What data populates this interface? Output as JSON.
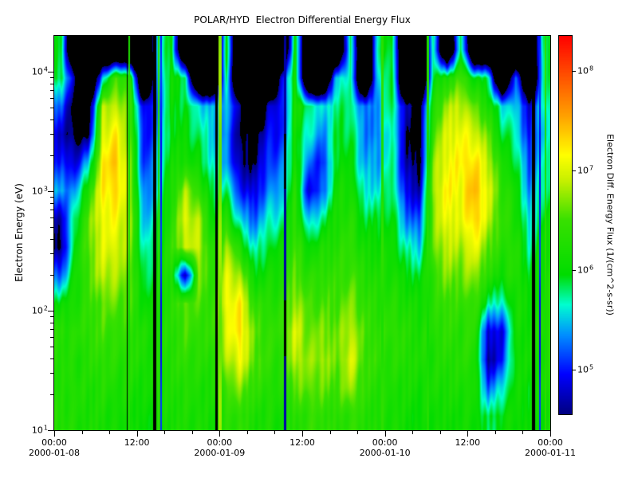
{
  "chart_data": {
    "type": "heatmap",
    "title": "POLAR/HYD  Electron Differential Energy Flux",
    "x_axis": {
      "start": "2000-01-08 00:00",
      "end": "2000-01-11 00:00",
      "total_hours": 72,
      "major_ticks": [
        {
          "hour": 0,
          "label": "00:00",
          "date": "2000-01-08"
        },
        {
          "hour": 12,
          "label": "12:00"
        },
        {
          "hour": 24,
          "label": "00:00",
          "date": "2000-01-09"
        },
        {
          "hour": 36,
          "label": "12:00"
        },
        {
          "hour": 48,
          "label": "00:00",
          "date": "2000-01-10"
        },
        {
          "hour": 60,
          "label": "12:00"
        },
        {
          "hour": 72,
          "label": "00:00",
          "date": "2000-01-11"
        }
      ],
      "minor_tick_step_hours": 4
    },
    "y_axis": {
      "label": "Electron Energy (eV)",
      "scale": "log",
      "range_ev": [
        10,
        20000
      ],
      "log_range": [
        1.0,
        4.3
      ],
      "major_ticks": [
        {
          "log": 4,
          "base": "10",
          "exp": "4"
        },
        {
          "log": 3,
          "base": "10",
          "exp": "3"
        },
        {
          "log": 2,
          "base": "10",
          "exp": "2"
        },
        {
          "log": 1,
          "base": "10",
          "exp": "1"
        }
      ]
    },
    "colorbar": {
      "label": "Electron Diff. Energy Flux (1/(cm^2-s-sr))",
      "scale": "log",
      "log_range": [
        4.55,
        8.35
      ],
      "ticks": [
        {
          "log": 8,
          "base": "10",
          "exp": "8"
        },
        {
          "log": 7,
          "base": "10",
          "exp": "7"
        },
        {
          "log": 6,
          "base": "10",
          "exp": "6"
        },
        {
          "log": 5,
          "base": "10",
          "exp": "5"
        }
      ],
      "colormap_stops": [
        {
          "v": 4.55,
          "color": "#000080"
        },
        {
          "v": 4.95,
          "color": "#0000ff"
        },
        {
          "v": 5.35,
          "color": "#0090ff"
        },
        {
          "v": 5.65,
          "color": "#00ffd0"
        },
        {
          "v": 5.95,
          "color": "#00dc00"
        },
        {
          "v": 6.5,
          "color": "#38e000"
        },
        {
          "v": 6.9,
          "color": "#c8f000"
        },
        {
          "v": 7.15,
          "color": "#ffff00"
        },
        {
          "v": 7.55,
          "color": "#ffa000"
        },
        {
          "v": 7.95,
          "color": "#ff5000"
        },
        {
          "v": 8.35,
          "color": "#ff0000"
        }
      ],
      "below_scale_color": "#000000"
    },
    "grid": {
      "note": "log10 electron differential energy flux; 36 two-hour time columns from 2000-01-08 00:00; each column lists values for energy_levels_ev top(high E) to bottom(low E); null = below color scale (rendered black)",
      "time_bin_hours": 2,
      "energy_levels_ev": [
        15000,
        9000,
        5100,
        3000,
        1750,
        1000,
        590,
        340,
        200,
        115,
        67,
        39,
        22,
        13
      ],
      "columns": [
        [
          5.9,
          5.9,
          5.2,
          4.8,
          5.0,
          5.4,
          4.7,
          4.5,
          5.2,
          6.0,
          6.3,
          6.3,
          6.2,
          6.3
        ],
        [
          null,
          4.6,
          4.3,
          4.4,
          4.8,
          5.3,
          5.8,
          6.0,
          6.1,
          6.2,
          6.3,
          6.2,
          6.3,
          6.2
        ],
        [
          null,
          null,
          4.2,
          4.5,
          5.5,
          6.3,
          6.6,
          6.6,
          6.5,
          6.4,
          6.4,
          6.3,
          6.2,
          6.2
        ],
        [
          null,
          5.5,
          6.8,
          7.0,
          7.2,
          7.2,
          7.1,
          7.0,
          6.9,
          6.6,
          6.5,
          6.4,
          6.3,
          6.2
        ],
        [
          null,
          6.5,
          6.9,
          7.2,
          7.4,
          7.3,
          7.1,
          7.0,
          6.8,
          6.6,
          6.4,
          6.3,
          6.2,
          6.1
        ],
        [
          null,
          6.3,
          6.5,
          6.6,
          6.7,
          6.8,
          6.8,
          6.7,
          6.6,
          6.5,
          6.4,
          6.3,
          6.2,
          6.1
        ],
        [
          null,
          null,
          4.8,
          4.9,
          5.0,
          5.2,
          5.4,
          5.6,
          5.8,
          6.0,
          6.2,
          6.2,
          6.1,
          6.0
        ],
        [
          5.5,
          5.3,
          5.2,
          5.3,
          5.5,
          5.6,
          5.8,
          5.9,
          6.0,
          6.1,
          6.2,
          6.2,
          6.2,
          6.1
        ],
        [
          6.0,
          6.1,
          6.0,
          6.0,
          6.1,
          6.2,
          6.3,
          6.4,
          6.3,
          6.3,
          6.3,
          6.3,
          6.2,
          6.2
        ],
        [
          null,
          5.8,
          5.9,
          6.0,
          6.2,
          6.8,
          7.0,
          6.9,
          4.6,
          6.6,
          6.5,
          6.4,
          6.3,
          6.2
        ],
        [
          null,
          null,
          5.6,
          5.8,
          6.0,
          6.4,
          6.8,
          6.9,
          6.7,
          6.5,
          6.4,
          6.3,
          6.2,
          6.2
        ],
        [
          null,
          null,
          5.4,
          5.5,
          5.6,
          5.8,
          6.0,
          6.2,
          6.3,
          6.4,
          6.4,
          6.3,
          6.2,
          6.1
        ],
        [
          6.0,
          5.8,
          5.5,
          5.3,
          5.4,
          5.8,
          6.3,
          6.8,
          7.0,
          7.1,
          7.0,
          6.8,
          6.5,
          6.3
        ],
        [
          null,
          null,
          4.6,
          4.5,
          4.6,
          5.0,
          5.5,
          6.2,
          6.8,
          7.2,
          7.3,
          7.1,
          6.7,
          6.4
        ],
        [
          null,
          null,
          null,
          4.4,
          4.5,
          4.8,
          5.2,
          5.6,
          6.0,
          6.4,
          6.6,
          6.6,
          6.4,
          6.2
        ],
        [
          null,
          null,
          4.8,
          4.9,
          5.1,
          5.3,
          5.6,
          5.9,
          6.1,
          6.3,
          6.4,
          6.4,
          6.3,
          6.2
        ],
        [
          null,
          4.8,
          4.9,
          5.0,
          5.2,
          5.4,
          5.7,
          6.0,
          6.2,
          6.3,
          6.4,
          6.3,
          6.2,
          6.1
        ],
        [
          6.1,
          6.2,
          6.2,
          6.1,
          6.2,
          6.3,
          6.4,
          6.5,
          6.6,
          6.8,
          7.0,
          6.9,
          6.6,
          6.3
        ],
        [
          null,
          null,
          5.8,
          5.6,
          5.2,
          4.8,
          5.4,
          6.0,
          6.3,
          6.5,
          6.6,
          6.7,
          6.6,
          6.4
        ],
        [
          null,
          null,
          5.5,
          5.3,
          5.0,
          5.2,
          5.8,
          6.2,
          6.4,
          6.5,
          6.7,
          6.8,
          6.6,
          6.4
        ],
        [
          null,
          5.6,
          5.8,
          5.9,
          6.0,
          6.1,
          6.2,
          6.3,
          6.4,
          6.5,
          6.6,
          6.6,
          6.5,
          6.3
        ],
        [
          5.9,
          5.7,
          5.8,
          5.9,
          6.0,
          6.2,
          6.3,
          6.4,
          6.5,
          6.7,
          6.9,
          7.0,
          6.8,
          6.4
        ],
        [
          null,
          null,
          5.2,
          5.3,
          5.4,
          5.6,
          5.9,
          6.1,
          6.3,
          6.4,
          6.5,
          6.5,
          6.4,
          6.3
        ],
        [
          5.8,
          5.6,
          5.4,
          5.3,
          5.4,
          5.6,
          5.9,
          6.1,
          6.2,
          6.3,
          6.4,
          6.4,
          6.3,
          6.2
        ],
        [
          6.0,
          6.0,
          5.9,
          5.8,
          5.8,
          5.9,
          6.0,
          6.1,
          6.2,
          6.3,
          6.4,
          6.3,
          6.2,
          6.2
        ],
        [
          null,
          null,
          4.7,
          4.6,
          4.7,
          4.9,
          5.3,
          5.7,
          6.0,
          6.2,
          6.3,
          6.3,
          6.2,
          6.1
        ],
        [
          null,
          null,
          4.4,
          4.3,
          4.4,
          4.7,
          5.1,
          5.5,
          5.9,
          6.1,
          6.2,
          6.2,
          6.1,
          6.0
        ],
        [
          5.8,
          5.9,
          6.2,
          6.5,
          6.7,
          6.8,
          6.7,
          6.6,
          6.4,
          6.3,
          6.3,
          6.2,
          6.2,
          6.1
        ],
        [
          null,
          6.2,
          6.8,
          7.0,
          7.1,
          7.2,
          7.1,
          6.9,
          6.7,
          6.5,
          6.4,
          6.3,
          6.2,
          6.1
        ],
        [
          6.0,
          6.5,
          6.9,
          7.1,
          7.2,
          7.1,
          7.0,
          6.8,
          6.6,
          6.4,
          6.3,
          6.3,
          6.2,
          6.1
        ],
        [
          null,
          6.0,
          6.6,
          7.0,
          7.3,
          7.5,
          7.4,
          7.1,
          6.8,
          6.5,
          6.4,
          6.3,
          6.2,
          6.1
        ],
        [
          null,
          5.8,
          6.2,
          6.6,
          6.9,
          7.0,
          6.9,
          6.6,
          6.3,
          5.8,
          4.8,
          4.6,
          5.2,
          5.8
        ],
        [
          null,
          null,
          5.6,
          5.9,
          6.2,
          6.4,
          6.4,
          6.3,
          6.1,
          5.6,
          4.9,
          5.0,
          5.6,
          6.0
        ],
        [
          null,
          5.4,
          5.5,
          5.7,
          5.9,
          6.1,
          6.2,
          6.3,
          6.3,
          6.2,
          6.1,
          6.1,
          6.1,
          6.1
        ],
        [
          null,
          null,
          4.8,
          4.9,
          5.1,
          5.3,
          5.5,
          5.7,
          5.9,
          6.0,
          6.1,
          6.1,
          6.0,
          6.0
        ],
        [
          5.9,
          5.8,
          5.7,
          5.6,
          5.7,
          5.8,
          6.0,
          6.1,
          6.2,
          6.2,
          6.3,
          6.2,
          6.2,
          6.1
        ]
      ]
    },
    "stripes": [
      {
        "hour": 10.6,
        "half_width_hours": 0.1,
        "log_flux": null
      },
      {
        "hour": 10.9,
        "half_width_hours": 0.1,
        "log_flux": 6.2
      },
      {
        "hour": 14.6,
        "half_width_hours": 0.2,
        "log_flux": null
      },
      {
        "hour": 15.15,
        "half_width_hours": 0.15,
        "log_flux": 6.3
      },
      {
        "hour": 15.55,
        "half_width_hours": 0.12,
        "log_flux": 5.0
      },
      {
        "hour": 23.55,
        "half_width_hours": 0.15,
        "log_flux": null
      },
      {
        "hour": 24.1,
        "half_width_hours": 0.2,
        "log_flux": 6.7
      },
      {
        "hour": 33.5,
        "half_width_hours": 0.18,
        "log_flux": 4.6
      },
      {
        "hour": 47.6,
        "half_width_hours": 0.15,
        "log_flux": 6.3
      },
      {
        "hour": 54.2,
        "half_width_hours": 0.18,
        "log_flux": 6.2
      },
      {
        "hour": 69.6,
        "half_width_hours": 0.22,
        "log_flux": null
      },
      {
        "hour": 70.5,
        "half_width_hours": 0.15,
        "log_flux": 5.0
      },
      {
        "hour": 71.3,
        "half_width_hours": 0.15,
        "log_flux": 6.3
      }
    ],
    "layout": {
      "background_color": "#ffffff",
      "axis_color": "#000000",
      "grid_lines": false,
      "legend_position": "right-colorbar"
    }
  }
}
